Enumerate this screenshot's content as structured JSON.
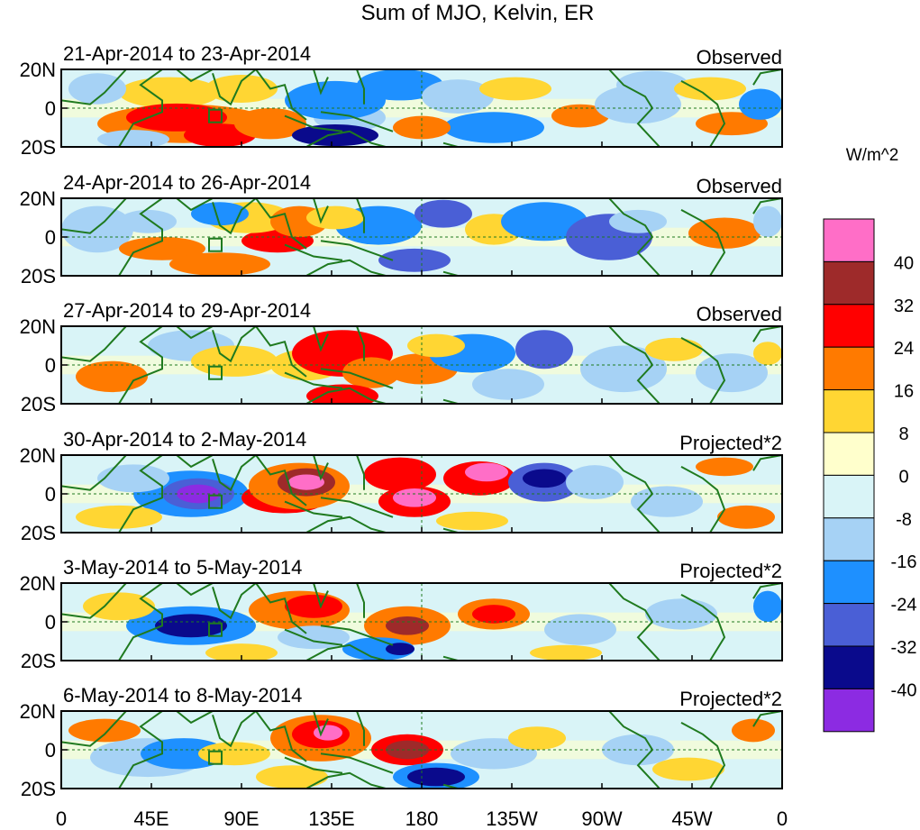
{
  "title": "Sum of MJO, Kelvin, ER",
  "units_label": "W/m^2",
  "lat_labels": [
    "20N",
    "0",
    "20S"
  ],
  "lon_labels": [
    "0",
    "45E",
    "90E",
    "135E",
    "180",
    "135W",
    "90W",
    "45W",
    "0"
  ],
  "colorbar": {
    "levels": [
      "40",
      "32",
      "24",
      "16",
      "8",
      "0",
      "-8",
      "-16",
      "-24",
      "-32",
      "-40"
    ],
    "colors": [
      "#ff6ec7",
      "#9e2a2a",
      "#ff0000",
      "#ff7a00",
      "#ffd633",
      "#ffffcc",
      "#d9f4f7",
      "#a6d2f5",
      "#1e90ff",
      "#4a5fd6",
      "#0a0a8c",
      "#8c2be2"
    ]
  },
  "panels": [
    {
      "date": "21-Apr-2014 to 23-Apr-2014",
      "type": "Observed"
    },
    {
      "date": "24-Apr-2014 to 26-Apr-2014",
      "type": "Observed"
    },
    {
      "date": "27-Apr-2014 to 29-Apr-2014",
      "type": "Observed"
    },
    {
      "date": "30-Apr-2014 to 2-May-2014",
      "type": "Projected*2"
    },
    {
      "date": "3-May-2014 to 5-May-2014",
      "type": "Projected*2"
    },
    {
      "date": "6-May-2014 to 8-May-2014",
      "type": "Projected*2"
    }
  ]
}
